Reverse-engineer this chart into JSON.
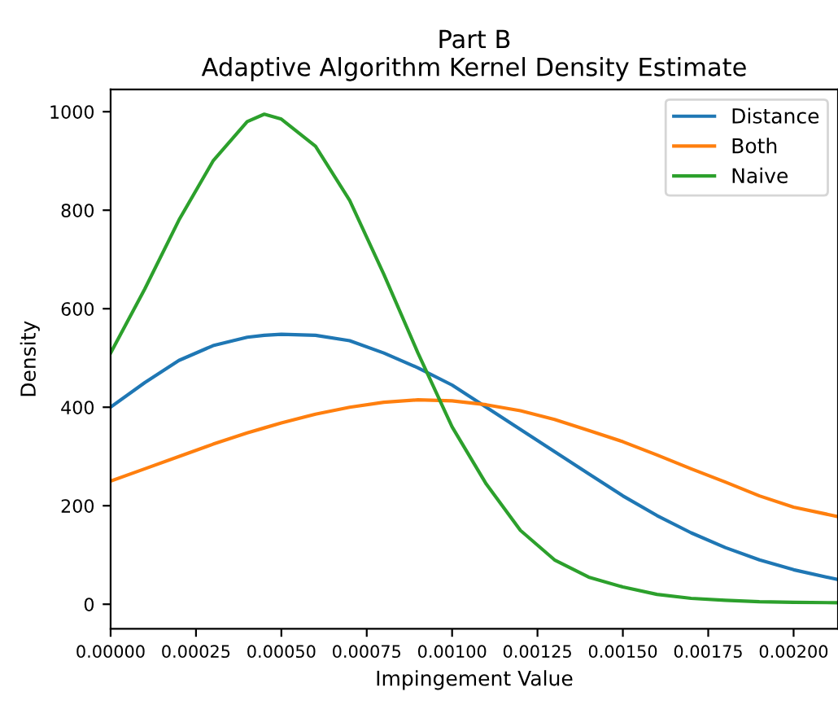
{
  "chart_data": {
    "type": "line",
    "title": "Part B\nAdaptive Algorithm Kernel Density Estimate",
    "xlabel": "Impingement Value",
    "ylabel": "Density",
    "x": [
      0,
      0.0001,
      0.0002,
      0.0003,
      0.0004,
      0.00045,
      0.0005,
      0.0006,
      0.0007,
      0.0008,
      0.0009,
      0.001,
      0.0011,
      0.0012,
      0.0013,
      0.0014,
      0.0015,
      0.0016,
      0.0017,
      0.0018,
      0.0019,
      0.002,
      0.00213
    ],
    "series": [
      {
        "name": "Distance",
        "color": "#1f77b4",
        "values": [
          400,
          450,
          495,
          525,
          542,
          546,
          548,
          546,
          535,
          510,
          480,
          445,
          400,
          355,
          310,
          265,
          220,
          180,
          145,
          115,
          90,
          70,
          50
        ]
      },
      {
        "name": "Both",
        "color": "#ff7f0e",
        "values": [
          250,
          275,
          300,
          325,
          348,
          358,
          368,
          386,
          400,
          410,
          415,
          413,
          405,
          393,
          375,
          353,
          330,
          303,
          275,
          248,
          220,
          197,
          178
        ]
      },
      {
        "name": "Naive",
        "color": "#2ca02c",
        "values": [
          510,
          640,
          780,
          900,
          980,
          995,
          985,
          930,
          820,
          670,
          510,
          360,
          244,
          150,
          90,
          55,
          35,
          20,
          12,
          8,
          5,
          4,
          3
        ]
      }
    ],
    "xlim": [
      0,
      0.00213
    ],
    "ylim": [
      -50,
      1045
    ],
    "xticks": [
      {
        "value": 0,
        "label": "0.00000"
      },
      {
        "value": 0.00025,
        "label": "0.00025"
      },
      {
        "value": 0.0005,
        "label": "0.00050"
      },
      {
        "value": 0.00075,
        "label": "0.00075"
      },
      {
        "value": 0.001,
        "label": "0.00100"
      },
      {
        "value": 0.00125,
        "label": "0.00125"
      },
      {
        "value": 0.0015,
        "label": "0.00150"
      },
      {
        "value": 0.00175,
        "label": "0.00175"
      },
      {
        "value": 0.002,
        "label": "0.00200"
      }
    ],
    "yticks": [
      0,
      200,
      400,
      600,
      800,
      1000
    ],
    "legend": "top right",
    "grid": false
  }
}
